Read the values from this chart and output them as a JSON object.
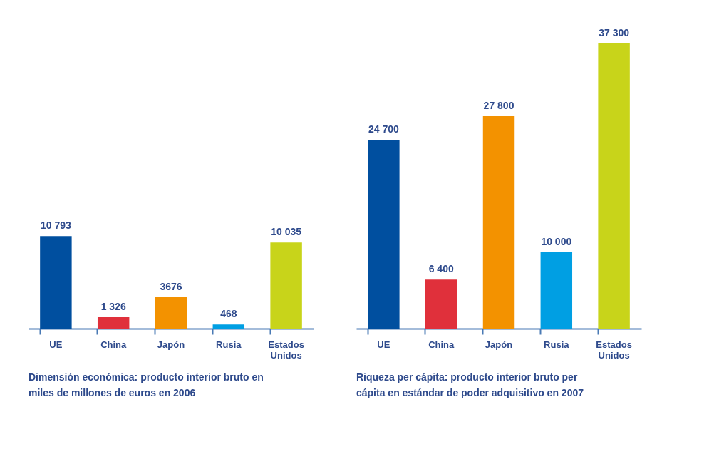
{
  "chart_data": [
    {
      "type": "bar",
      "categories": [
        "UE",
        "China",
        "Japón",
        "Rusia",
        "Estados Unidos"
      ],
      "values": [
        10793,
        1326,
        3676,
        468,
        10035
      ],
      "value_labels": [
        "10 793",
        "1 326",
        "3676",
        "468",
        "10 035"
      ],
      "colors": [
        "#004f9f",
        "#e0303b",
        "#f39200",
        "#009fe3",
        "#c8d41a"
      ],
      "annotations": [
        "Dimensión económica:  producto interior bruto en miles de millones de  euros en 2006"
      ]
    },
    {
      "type": "bar",
      "categories": [
        "UE",
        "China",
        "Japón",
        "Rusia",
        "Estados Unidos"
      ],
      "values": [
        24700,
        6400,
        27800,
        10000,
        37300
      ],
      "value_labels": [
        "24 700",
        "6 400",
        "27 800",
        "10 000",
        "37 300"
      ],
      "colors": [
        "#004f9f",
        "#e0303b",
        "#f39200",
        "#009fe3",
        "#c8d41a"
      ],
      "annotations": [
        "Riqueza per cápita: producto interior bruto per cápita en estándar de poder adquisitivo  en 2007"
      ]
    }
  ]
}
